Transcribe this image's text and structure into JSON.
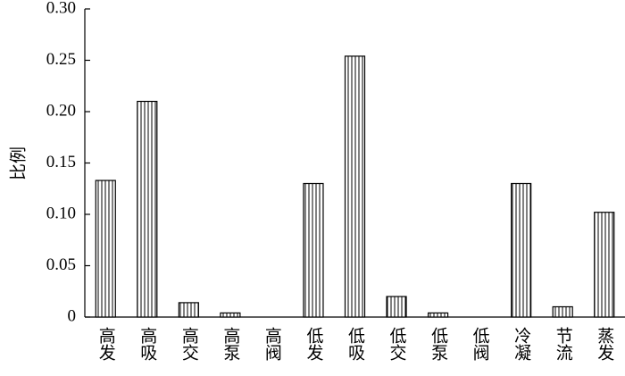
{
  "chart_data": {
    "type": "bar",
    "y_label": "比例",
    "categories": [
      "高发",
      "高吸",
      "高交",
      "高泵",
      "高阀",
      "低发",
      "低吸",
      "低交",
      "低泵",
      "低阀",
      "冷凝",
      "节流",
      "蒸发"
    ],
    "values": [
      0.133,
      0.21,
      0.014,
      0.004,
      0,
      0.13,
      0.254,
      0.02,
      0.004,
      0,
      0.13,
      0.01,
      0.102
    ],
    "color": "#000000",
    "ylim": [
      0,
      0.3
    ],
    "yticks": [
      0,
      0.05,
      {
        "value": 0.1,
        "label": "0.10"
      },
      0.15,
      {
        "value": 0.2,
        "label": "0.20"
      },
      0.25,
      {
        "value": 0.3,
        "label": "0.30"
      }
    ],
    "grid": false
  }
}
